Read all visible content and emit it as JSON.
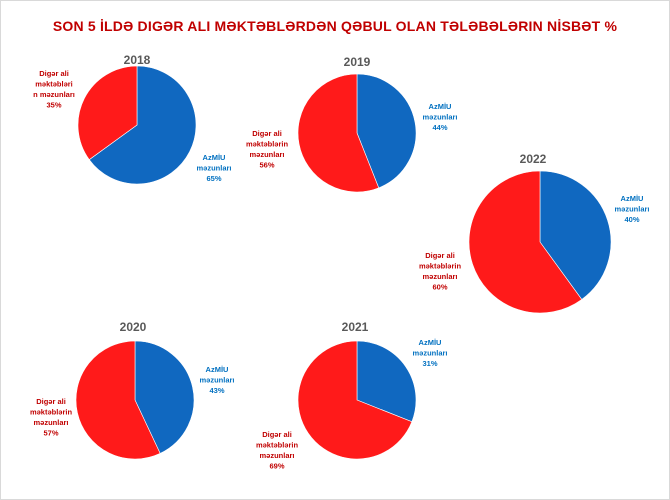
{
  "title": "SON 5 İLDƏ DIGƏR ALI MƏKTƏBLƏRDƏN QƏBUL OLAN TƏLƏBƏLƏRIN NİSBƏT %",
  "colors": {
    "azmiu": "#1068c0",
    "other": "#ff1a1a",
    "title": "#c00000"
  },
  "chart_data": [
    {
      "type": "pie",
      "title": "2018",
      "slices": [
        {
          "name": "AzMİU məzunları",
          "value": 65,
          "label_lines": [
            "AzMİU",
            "məzunları",
            "65%"
          ]
        },
        {
          "name": "Digər ali məktəbləri n məzunları",
          "value": 35,
          "label_lines": [
            "Digər ali",
            "məktəbləri",
            "n məzunları",
            "35%"
          ]
        }
      ]
    },
    {
      "type": "pie",
      "title": "2019",
      "slices": [
        {
          "name": "AzMİU məzunları",
          "value": 44,
          "label_lines": [
            "AzMİU",
            "məzunları",
            "44%"
          ]
        },
        {
          "name": "Digər ali məktəblərin məzunları",
          "value": 56,
          "label_lines": [
            "Digər ali",
            "məktəblərin",
            "məzunları",
            "56%"
          ]
        }
      ]
    },
    {
      "type": "pie",
      "title": "2022",
      "slices": [
        {
          "name": "AzMİU məzunları",
          "value": 40,
          "label_lines": [
            "AzMİU",
            "məzunları",
            "40%"
          ]
        },
        {
          "name": "Digər ali məktəblərin məzunları",
          "value": 60,
          "label_lines": [
            "Digər ali",
            "məktəblərin",
            "məzunları",
            "60%"
          ]
        }
      ]
    },
    {
      "type": "pie",
      "title": "2020",
      "slices": [
        {
          "name": "AzMİU məzunları",
          "value": 43,
          "label_lines": [
            "AzMİU",
            "məzunları",
            "43%"
          ]
        },
        {
          "name": "Digər ali məktəblərin məzunları",
          "value": 57,
          "label_lines": [
            "Digər ali",
            "məktəblərin",
            "məzunları",
            "57%"
          ]
        }
      ]
    },
    {
      "type": "pie",
      "title": "2021",
      "slices": [
        {
          "name": "AzMİU məzunları",
          "value": 31,
          "label_lines": [
            "AzMİU",
            "məzunları",
            "31%"
          ]
        },
        {
          "name": "Digər ali məktəblərin məzunları",
          "value": 69,
          "label_lines": [
            "Digər ali",
            "məktəblərin",
            "məzunları",
            "69%"
          ]
        }
      ]
    }
  ]
}
